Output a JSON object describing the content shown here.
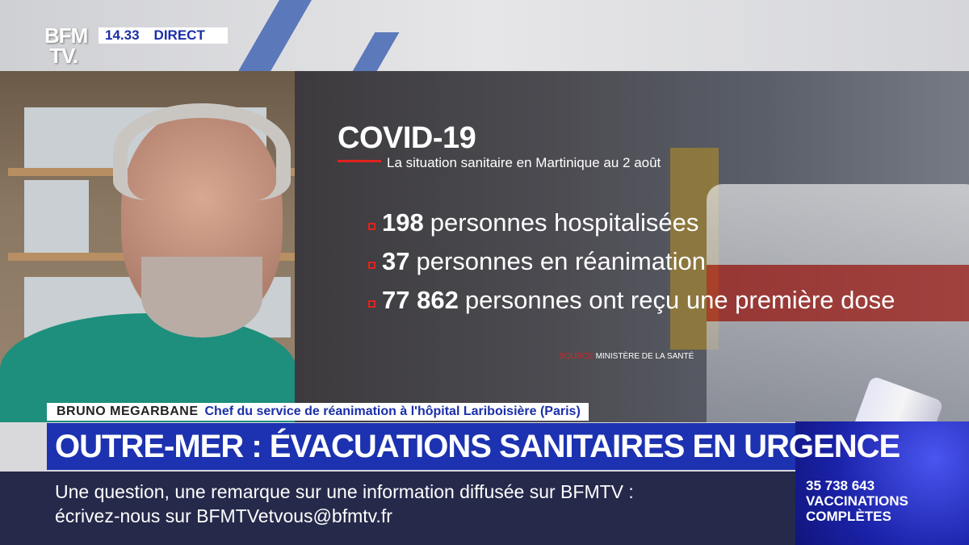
{
  "channel": {
    "logo": "BFM TV.",
    "time": "14.33",
    "live_label": "DIRECT"
  },
  "graphic": {
    "title": "COVID-19",
    "subtitle": "La situation sanitaire en Martinique au 2 août",
    "stats": [
      {
        "value": "198",
        "label": "personnes hospitalisées"
      },
      {
        "value": "37",
        "label": "personnes en réanimation"
      },
      {
        "value": "77 862",
        "label": "personnes ont reçu une première dose"
      }
    ],
    "source_label": "SOURCE",
    "source": "MINISTÈRE DE LA SANTÉ"
  },
  "guest": {
    "name": "BRUNO MEGARBANE",
    "title": "Chef du service de réanimation à l'hôpital Lariboisière (Paris)"
  },
  "headline": "OUTRE-MER : ÉVACUATIONS SANITAIRES EN URGENCE",
  "ticker": {
    "line1": "Une question, une remarque sur une information diffusée sur BFMTV :",
    "line2": "écrivez-nous sur BFMTVetvous@bfmtv.fr"
  },
  "vaccination": {
    "count": "35 738 643",
    "line1": "VACCINATIONS",
    "line2": "COMPLÈTES"
  },
  "colors": {
    "accent_blue": "#1c32b0",
    "ticker_bg": "#25294a",
    "red": "#e0231d"
  }
}
